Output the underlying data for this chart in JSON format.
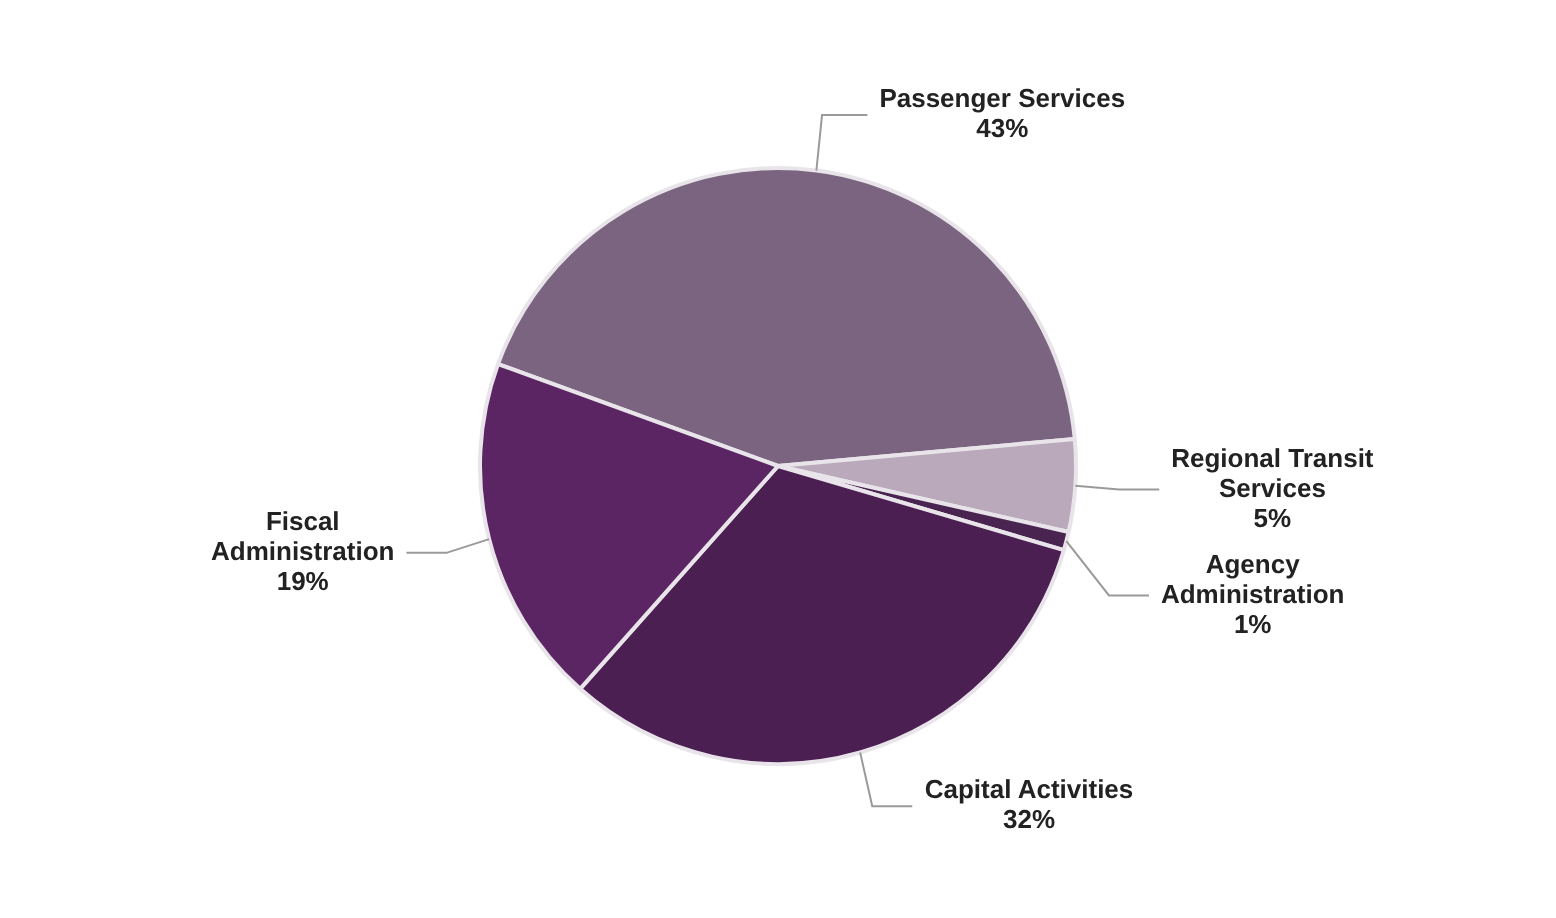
{
  "chart_data": {
    "type": "pie",
    "categories": [
      "Passenger Services",
      "Regional Transit Services",
      "Agency Administration",
      "Capital Activities",
      "Fiscal Administration"
    ],
    "values": [
      43,
      5,
      1,
      32,
      19
    ],
    "value_labels": [
      "43%",
      "5%",
      "1%",
      "32%",
      "19%"
    ],
    "colors": [
      "#7a6480",
      "#b9a9bb",
      "#4a2450",
      "#4b1f52",
      "#5a2562"
    ],
    "legend": false
  }
}
